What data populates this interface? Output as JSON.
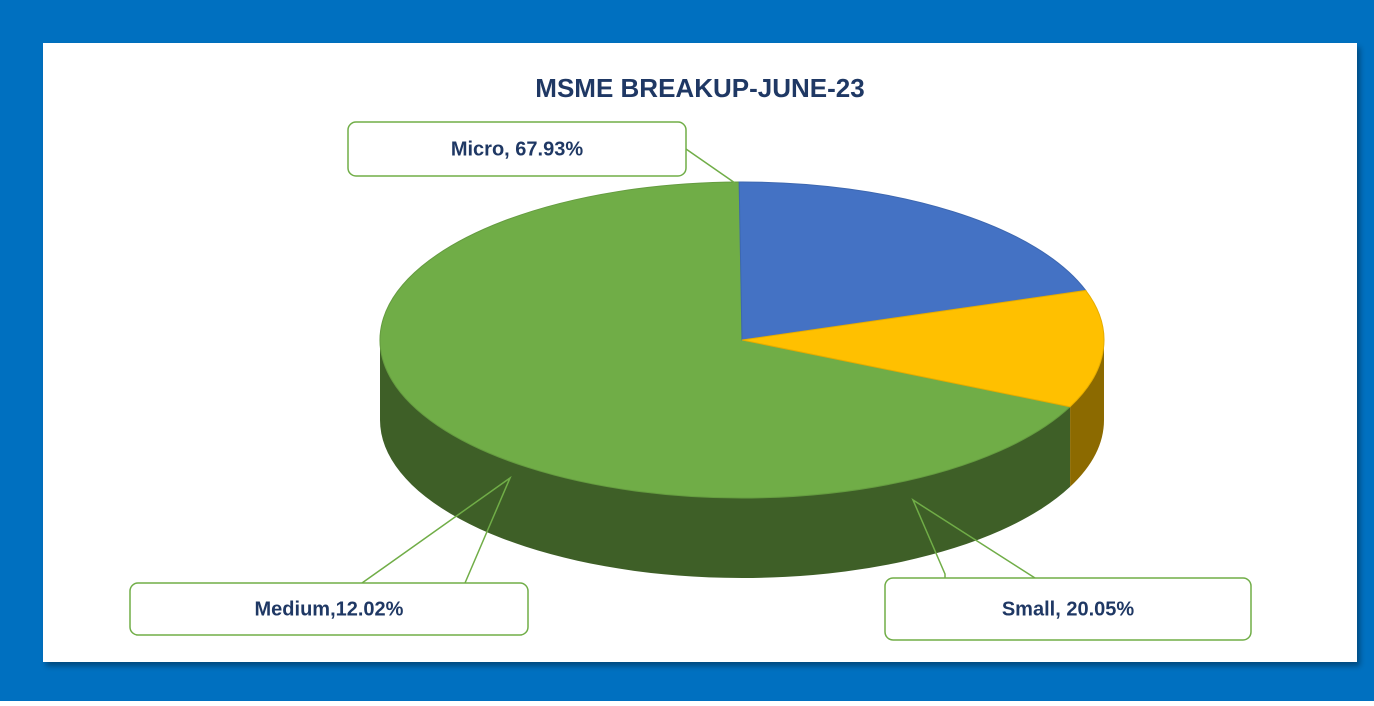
{
  "chart_data": {
    "type": "pie",
    "title": "MSME BREAKUP-JUNE-23",
    "values": [
      67.93,
      20.05,
      12.02
    ],
    "value_labels": [
      "Micro, 67.93%",
      "Small, 20.05%",
      "Medium,12.02%"
    ],
    "colors": [
      "#70ad47",
      "#4472c4",
      "#ffc000"
    ]
  }
}
